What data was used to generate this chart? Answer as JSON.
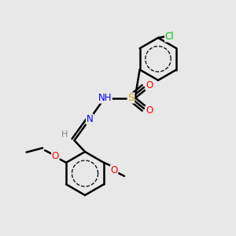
{
  "background_color": "#e8e8e8",
  "bond_color": "#000000",
  "bond_width": 1.8,
  "atoms": {
    "Cl": {
      "color": "#00bb00",
      "fontsize": 8.5
    },
    "O": {
      "color": "#ff0000",
      "fontsize": 8.5
    },
    "N": {
      "color": "#0000ff",
      "fontsize": 8.5
    },
    "S": {
      "color": "#ccaa00",
      "fontsize": 9.5
    },
    "H": {
      "color": "#888888",
      "fontsize": 8
    }
  },
  "figsize": [
    3.0,
    3.0
  ],
  "dpi": 100,
  "xlim": [
    0,
    10
  ],
  "ylim": [
    0,
    10
  ]
}
